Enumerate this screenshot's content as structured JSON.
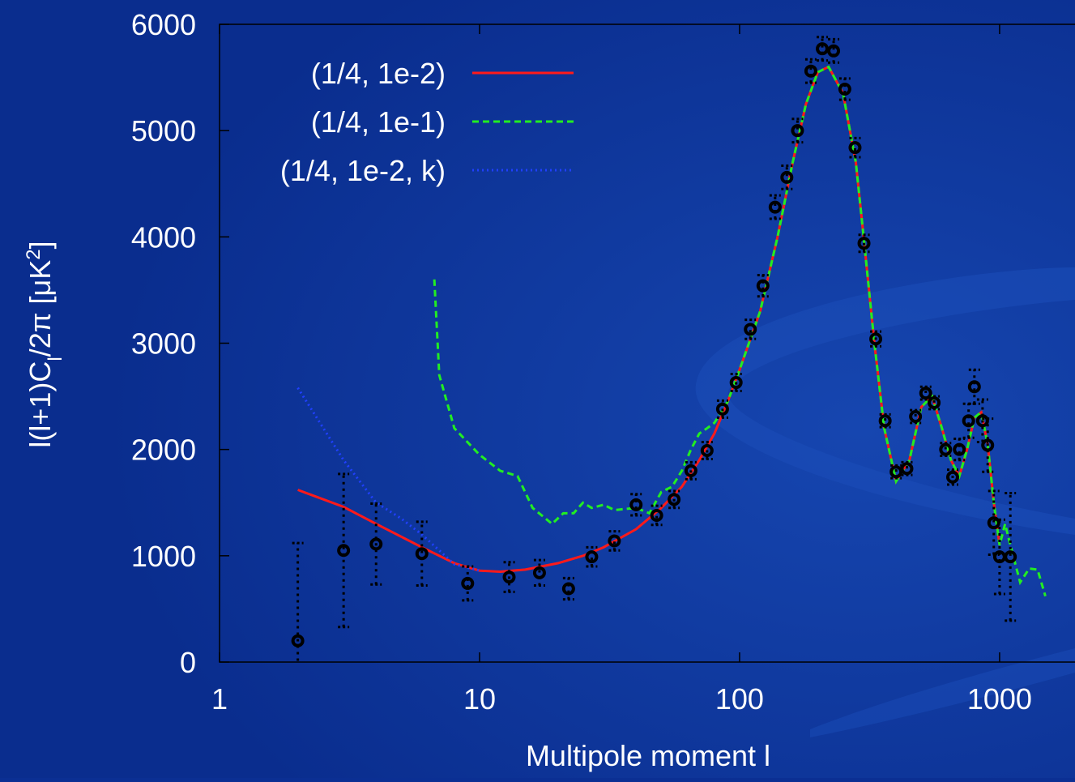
{
  "chart_data": {
    "type": "line",
    "xlabel": "Multipole moment l",
    "ylabel": [
      "l(l+1)C",
      "l",
      "/2π [μK",
      "2",
      "]"
    ],
    "xscale": "log",
    "xlim": [
      1,
      1950
    ],
    "ylim": [
      0,
      6000
    ],
    "xticks": [
      1,
      10,
      100,
      1000
    ],
    "yticks": [
      0,
      1000,
      2000,
      3000,
      4000,
      5000,
      6000
    ],
    "legend": "upper left",
    "series": [
      {
        "name": "(1/4, 1e-2)",
        "color": "#ff1a1a",
        "style": "solid",
        "x": [
          2,
          3,
          4,
          6,
          8,
          10,
          12,
          15,
          20,
          25,
          30,
          40,
          50,
          60,
          70,
          80,
          90,
          100,
          120,
          140,
          160,
          180,
          200,
          220,
          250,
          280,
          300,
          330,
          360,
          400,
          450,
          500,
          550,
          600,
          650,
          700,
          750,
          800,
          850,
          900,
          950,
          1000
        ],
        "values": [
          1620,
          1460,
          1300,
          1080,
          930,
          860,
          850,
          870,
          930,
          1000,
          1080,
          1250,
          1450,
          1650,
          1900,
          2150,
          2450,
          2750,
          3300,
          4000,
          4700,
          5250,
          5550,
          5600,
          5350,
          4700,
          4000,
          3000,
          2200,
          1700,
          1900,
          2400,
          2500,
          2200,
          1900,
          1750,
          2000,
          2300,
          2350,
          2050,
          1500,
          1100
        ]
      },
      {
        "name": "(1/4, 1e-1)",
        "color": "#22ee22",
        "style": "dashed",
        "x": [
          6.7,
          7,
          8,
          10,
          12,
          14,
          16,
          19,
          21,
          23,
          25,
          27,
          30,
          33,
          40,
          45,
          50,
          55,
          60,
          65,
          70,
          75,
          80,
          90,
          100,
          120,
          140,
          160,
          180,
          200,
          220,
          250,
          280,
          300,
          330,
          360,
          400,
          450,
          500,
          550,
          600,
          650,
          700,
          750,
          800,
          850,
          900,
          950,
          1000,
          1050,
          1100,
          1200,
          1300,
          1400,
          1500
        ],
        "values": [
          3600,
          2700,
          2200,
          1950,
          1800,
          1750,
          1450,
          1300,
          1400,
          1400,
          1500,
          1450,
          1480,
          1430,
          1450,
          1400,
          1600,
          1650,
          1800,
          2000,
          2150,
          2200,
          2250,
          2450,
          2750,
          3300,
          4000,
          4700,
          5250,
          5550,
          5600,
          5350,
          4700,
          4000,
          3000,
          2200,
          1700,
          1900,
          2400,
          2500,
          2200,
          1900,
          1750,
          2000,
          2300,
          2350,
          2050,
          1500,
          1100,
          1300,
          1100,
          750,
          880,
          870,
          620
        ]
      },
      {
        "name": "(1/4, 1e-2, k)",
        "color": "#2040ff",
        "style": "dotted",
        "x": [
          2,
          3,
          4,
          5,
          6,
          7,
          8,
          10
        ],
        "values": [
          2580,
          1900,
          1500,
          1350,
          1200,
          1050,
          920,
          860
        ]
      }
    ],
    "points": {
      "color": "#000000",
      "x": [
        2,
        3,
        4,
        6,
        9,
        13,
        17,
        22,
        27,
        33,
        40,
        48,
        56,
        65,
        75,
        86,
        97,
        110,
        123,
        137,
        152,
        167,
        188,
        208,
        230,
        254,
        278,
        301,
        334,
        363,
        400,
        440,
        475,
        520,
        560,
        620,
        660,
        700,
        760,
        800,
        860,
        900,
        950,
        1000,
        1100
      ],
      "values": [
        200,
        1050,
        1110,
        1020,
        740,
        800,
        840,
        690,
        990,
        1140,
        1480,
        1380,
        1530,
        1800,
        1990,
        2380,
        2630,
        3130,
        3540,
        4280,
        4560,
        5000,
        5560,
        5770,
        5750,
        5390,
        4840,
        3940,
        3040,
        2270,
        1790,
        1820,
        2310,
        2530,
        2440,
        2000,
        1740,
        2000,
        2270,
        2590,
        2270,
        2040,
        1310,
        990,
        990
      ],
      "errors": [
        920,
        720,
        380,
        300,
        160,
        140,
        120,
        100,
        90,
        90,
        100,
        90,
        80,
        80,
        80,
        80,
        80,
        90,
        100,
        110,
        110,
        110,
        110,
        110,
        110,
        100,
        90,
        80,
        70,
        60,
        60,
        60,
        60,
        60,
        60,
        60,
        70,
        100,
        160,
        160,
        200,
        250,
        300,
        350,
        600
      ]
    }
  }
}
